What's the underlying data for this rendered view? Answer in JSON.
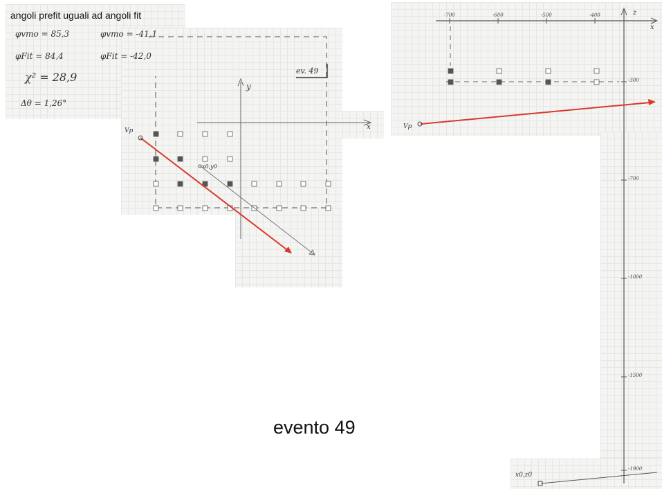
{
  "title": "angoli prefit uguali ad angoli fit",
  "event_label": "evento 49",
  "notes": {
    "phi_vmo_1": "φvmo = 85,3",
    "phi_vmo_2": "φvmo = -41,1",
    "phi_fit_1": "φFit = 84,4",
    "phi_fit_2": "φFit = -42,0",
    "chi2": "χ² = 28,9",
    "delta_theta": "Δθ = 1,26°",
    "event_tag": "ev. 49"
  },
  "left_view": {
    "axis_y": "y",
    "axis_x": "x",
    "vertex_label": "Vp",
    "point_label": "x0,y0"
  },
  "right_view": {
    "axis_z": "z",
    "axis_x": "x",
    "vertex_label": "Vp",
    "point_label": "x0,z0",
    "ticks_top": [
      "-700",
      "-600",
      "-500",
      "-400"
    ],
    "ticks_right": [
      "-300",
      "-700",
      "-1000",
      "-1500",
      "-1900"
    ]
  },
  "colors": {
    "track_fit": "#d8392b",
    "track_prefit": "#666666",
    "cell_hit": "#555555",
    "cell_empty": "#ffffff"
  }
}
